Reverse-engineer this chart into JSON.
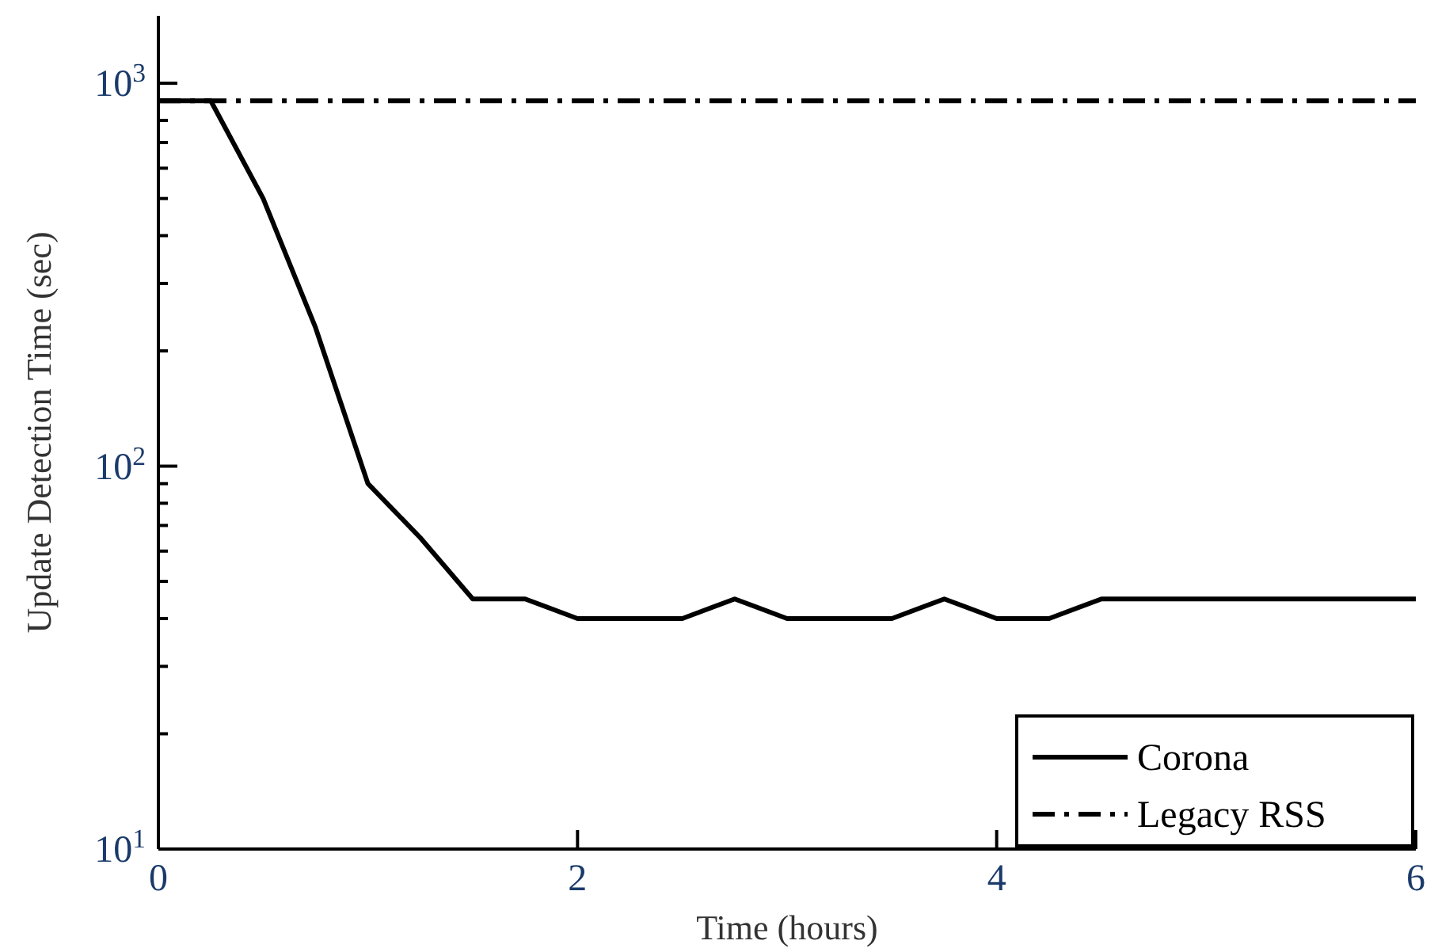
{
  "chart_data": {
    "type": "line",
    "xlabel": "Time (hours)",
    "ylabel": "Update Detection Time (sec)",
    "log": "y",
    "legend": "bottom right",
    "grid": false,
    "xlim": [
      0,
      6
    ],
    "xticks": [
      0,
      2,
      4,
      6
    ],
    "ylim": [
      10,
      1500
    ],
    "yticks": [
      {
        "value": 10,
        "label": "10$^{1}$"
      },
      {
        "value": 20,
        "label": null
      },
      {
        "value": 30,
        "label": null
      },
      {
        "value": 40,
        "label": null
      },
      {
        "value": 50,
        "label": null
      },
      {
        "value": 60,
        "label": null
      },
      {
        "value": 70,
        "label": null
      },
      {
        "value": 80,
        "label": null
      },
      {
        "value": 90,
        "label": null
      },
      {
        "value": 100,
        "label": "10$^{2}$"
      },
      {
        "value": 200,
        "label": null
      },
      {
        "value": 300,
        "label": null
      },
      {
        "value": 400,
        "label": null
      },
      {
        "value": 500,
        "label": null
      },
      {
        "value": 600,
        "label": null
      },
      {
        "value": 700,
        "label": null
      },
      {
        "value": 800,
        "label": null
      },
      {
        "value": 900,
        "label": null
      },
      {
        "value": 1000,
        "label": "10$^{3}$"
      }
    ],
    "series": [
      {
        "name": "Corona",
        "color": "#000000",
        "line_style": "solid",
        "x": [
          0,
          0.25,
          0.5,
          0.75,
          1,
          1.25,
          1.5,
          1.75,
          2,
          2.25,
          2.5,
          2.75,
          3,
          3.25,
          3.5,
          3.75,
          4,
          4.25,
          4.5,
          4.75,
          5,
          5.25,
          5.5,
          5.75,
          6
        ],
        "values": [
          900,
          900,
          500,
          230,
          90,
          65,
          45,
          45,
          40,
          40,
          40,
          45,
          40,
          40,
          40,
          45,
          40,
          40,
          45,
          45,
          45,
          45,
          45,
          45,
          45
        ]
      },
      {
        "name": "Legacy RSS",
        "color": "#000000",
        "line_style": "dashdot",
        "x": [
          0,
          6
        ],
        "values": [
          900,
          900
        ]
      }
    ]
  }
}
